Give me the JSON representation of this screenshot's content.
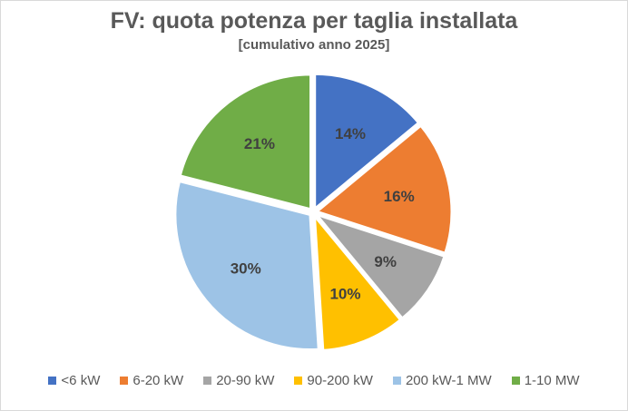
{
  "chart_data": {
    "type": "pie",
    "title": "FV: quota potenza per taglia installata",
    "subtitle": "[cumulativo anno 2025]",
    "categories": [
      "<6 kW",
      "6-20 kW",
      "20-90 kW",
      "90-200 kW",
      "200 kW-1 MW",
      "1-10 MW"
    ],
    "values": [
      14,
      16,
      9,
      10,
      30,
      21
    ],
    "labels": [
      "14%",
      "16%",
      "9%",
      "10%",
      "30%",
      "21%"
    ],
    "colors": [
      "#4472c4",
      "#ed7d31",
      "#a5a5a5",
      "#ffc000",
      "#9dc3e6",
      "#70ad47"
    ],
    "exploded": true,
    "start_angle": "12 o'clock, clockwise",
    "legend_position": "bottom"
  },
  "legend": [
    {
      "label": "<6 kW",
      "color": "#4472c4"
    },
    {
      "label": "6-20 kW",
      "color": "#ed7d31"
    },
    {
      "label": "20-90 kW",
      "color": "#a5a5a5"
    },
    {
      "label": "90-200 kW",
      "color": "#ffc000"
    },
    {
      "label": "200 kW-1 MW",
      "color": "#9dc3e6"
    },
    {
      "label": "1-10 MW",
      "color": "#70ad47"
    }
  ]
}
